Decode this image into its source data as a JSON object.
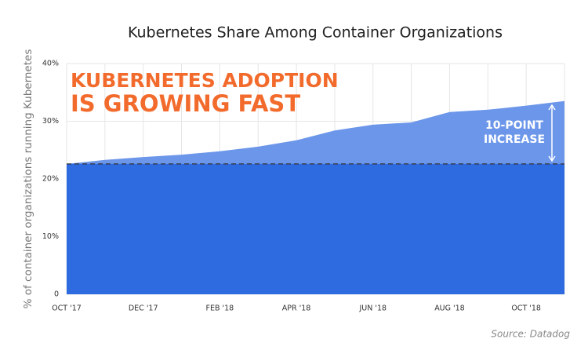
{
  "chart_data": {
    "type": "area",
    "title": "Kubernetes Share Among Container Organizations",
    "y_label": "% of container organizations running Kubernetes",
    "annotations": [
      "KUBERNETES ADOPTION",
      "IS GROWING FAST",
      "10-POINT",
      "INCREASE"
    ],
    "source": "Source: Datadog",
    "categories": [
      "OCT '17",
      null,
      "DEC '17",
      null,
      "FEB '18",
      null,
      "APR '18",
      null,
      "JUN '18",
      null,
      "AUG '18",
      null,
      "OCT '18",
      null
    ],
    "series": [
      {
        "color": "#6b96ea",
        "values": [
          22.6,
          23.3,
          23.8,
          24.2,
          24.8,
          25.6,
          26.7,
          28.4,
          29.4,
          29.8,
          31.6,
          32.0,
          32.7,
          33.5
        ]
      },
      {
        "color": "#2e6ae0",
        "values": [
          22.6,
          22.6,
          22.6,
          22.6,
          22.6,
          22.6,
          22.6,
          22.6,
          22.6,
          22.6,
          22.6,
          22.6,
          22.6,
          22.6
        ]
      }
    ],
    "ylim": [
      0,
      40
    ],
    "yticks": [
      0,
      {
        "value": 10,
        "label": "10%"
      },
      {
        "value": 20,
        "label": "20%"
      },
      {
        "value": 30,
        "label": "30%"
      },
      {
        "value": 40,
        "label": "40%"
      }
    ],
    "annotation_color": "#f26b2c",
    "grid": true
  }
}
